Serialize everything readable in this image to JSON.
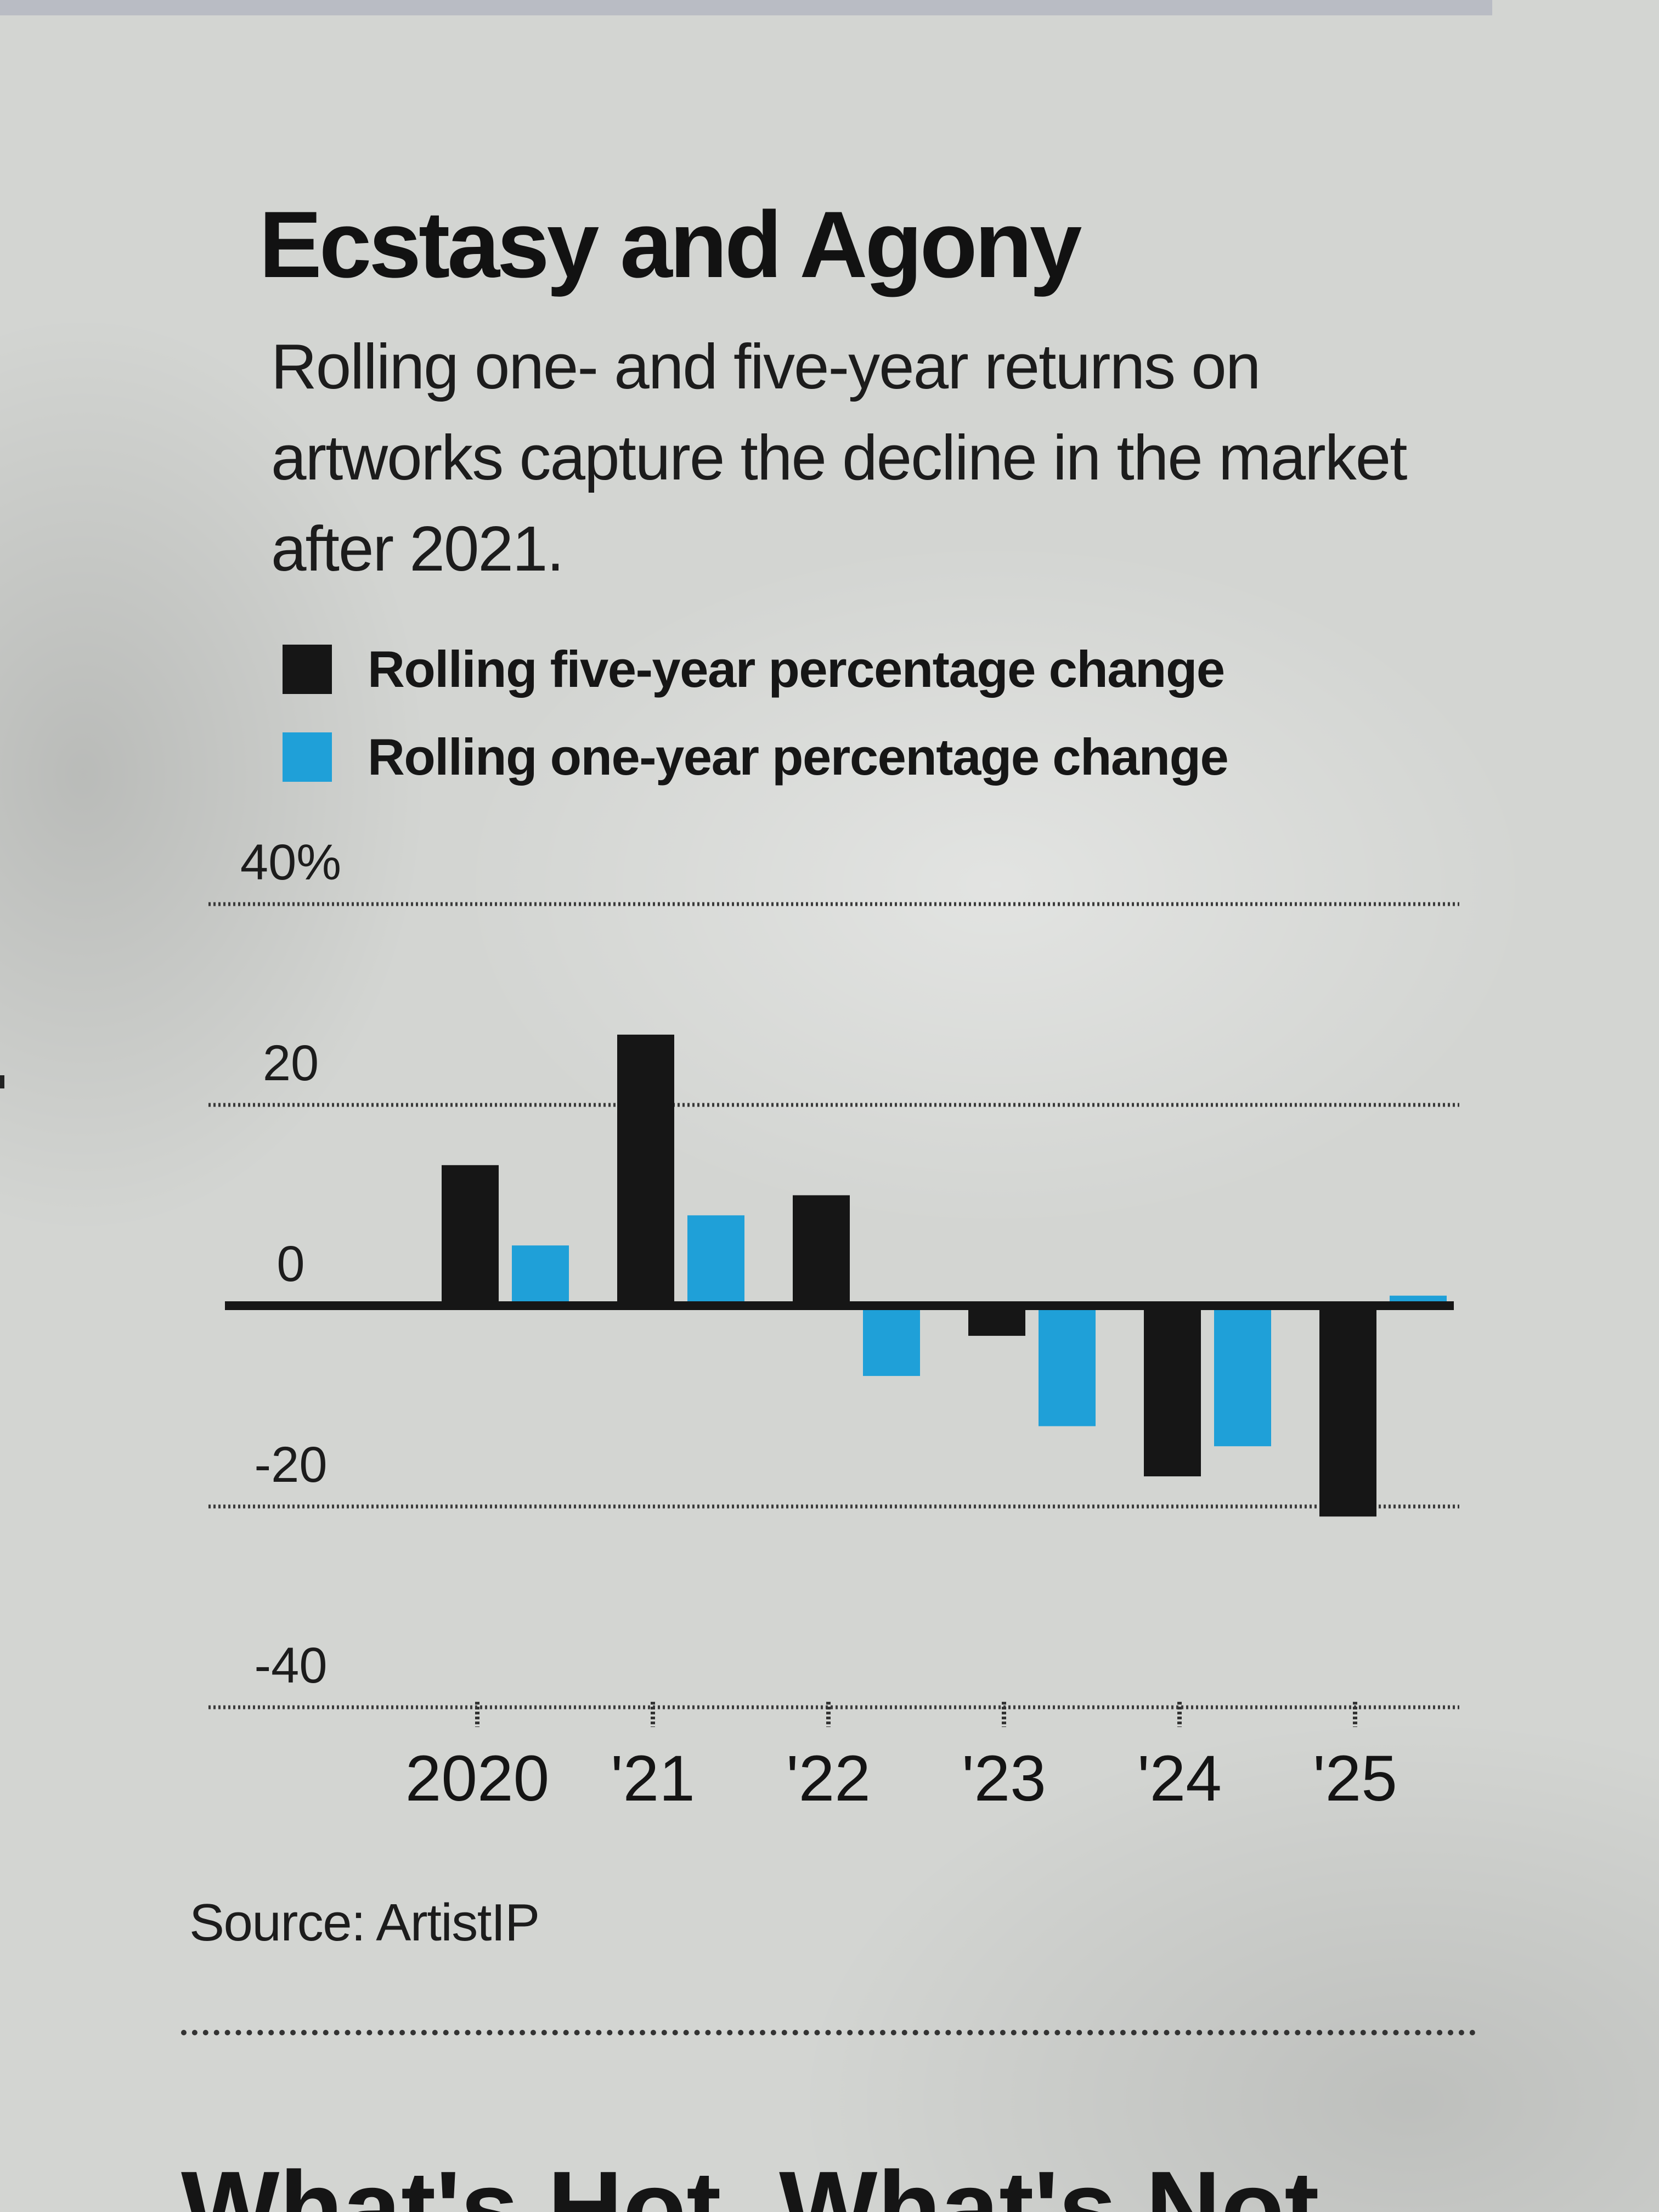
{
  "title": "Ecstasy and Agony",
  "subtitle": "Rolling one- and five-year returns on artworks capture the decline in the market after 2021.",
  "source": "Source: ArtistIP",
  "next_heading": "What's Hot, What's Not",
  "colors": {
    "five_year": "#161616",
    "one_year": "#1fa0d8"
  },
  "chart_data": {
    "type": "bar",
    "categories": [
      "2020",
      "'21",
      "'22",
      "'23",
      "'24",
      "'25"
    ],
    "series": [
      {
        "name": "Rolling five-year percentage change",
        "values": [
          14,
          27,
          11,
          -3,
          -17,
          -21
        ]
      },
      {
        "name": "Rolling one-year percentage change",
        "values": [
          6,
          9,
          -7,
          -12,
          -14,
          1
        ]
      }
    ],
    "y_ticks": [
      40,
      20,
      0,
      -20,
      -40
    ],
    "y_tick_labels": [
      "40%",
      "20",
      "0",
      "-20",
      "-40"
    ],
    "ylim": [
      -40,
      40
    ],
    "xlabel": "",
    "ylabel": "",
    "grid": true,
    "legend": "top-left"
  }
}
